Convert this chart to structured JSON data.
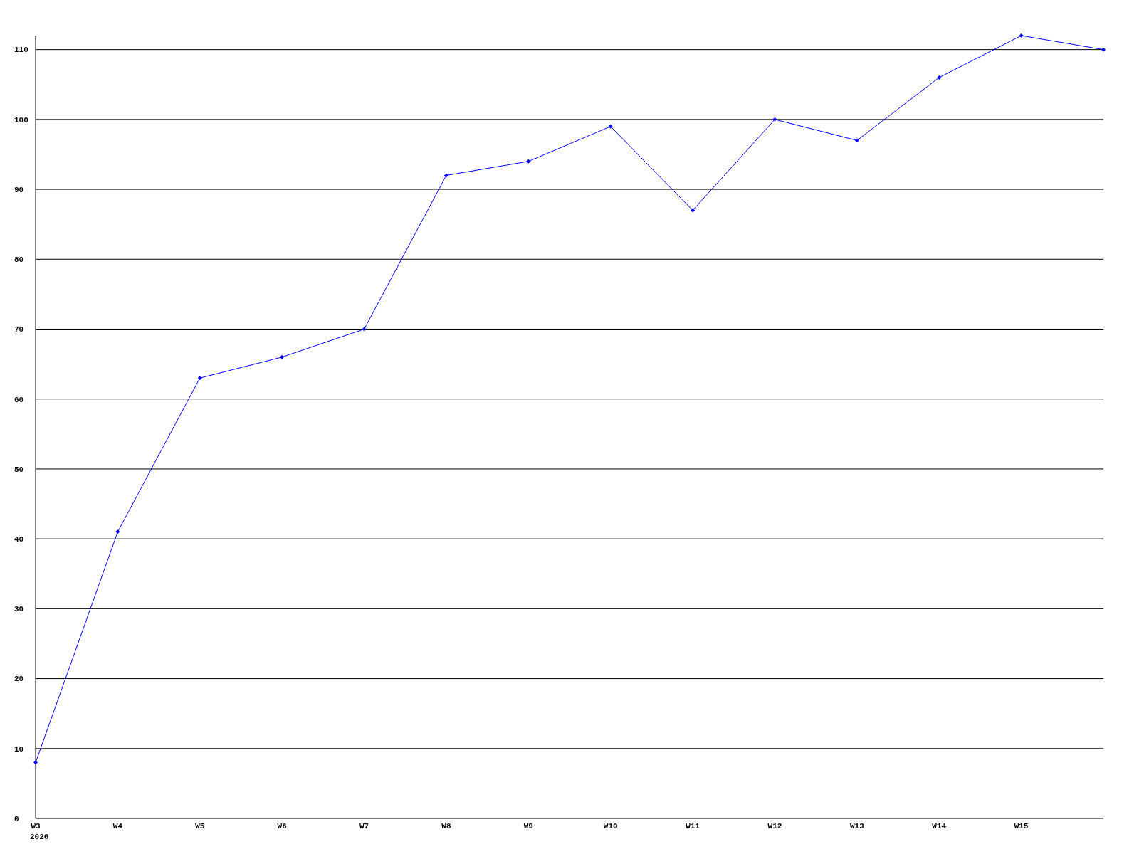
{
  "chart_data": {
    "type": "line",
    "categories": [
      "W3\n2026",
      "W4",
      "W5",
      "W6",
      "W7",
      "W8",
      "W9",
      "W10",
      "W11",
      "W12",
      "W13",
      "W14",
      "W15",
      null
    ],
    "series": [
      {
        "color": "#0000ff",
        "values": [
          8,
          41,
          63,
          66,
          70,
          92,
          94,
          99,
          87,
          100,
          97,
          106,
          112,
          110
        ]
      }
    ],
    "ylim": [
      0,
      112
    ],
    "yticks": [
      0,
      10,
      20,
      30,
      40,
      50,
      60,
      70,
      80,
      90,
      100,
      110
    ],
    "grid": "y",
    "marker": "diamond",
    "line_style": "solid"
  }
}
